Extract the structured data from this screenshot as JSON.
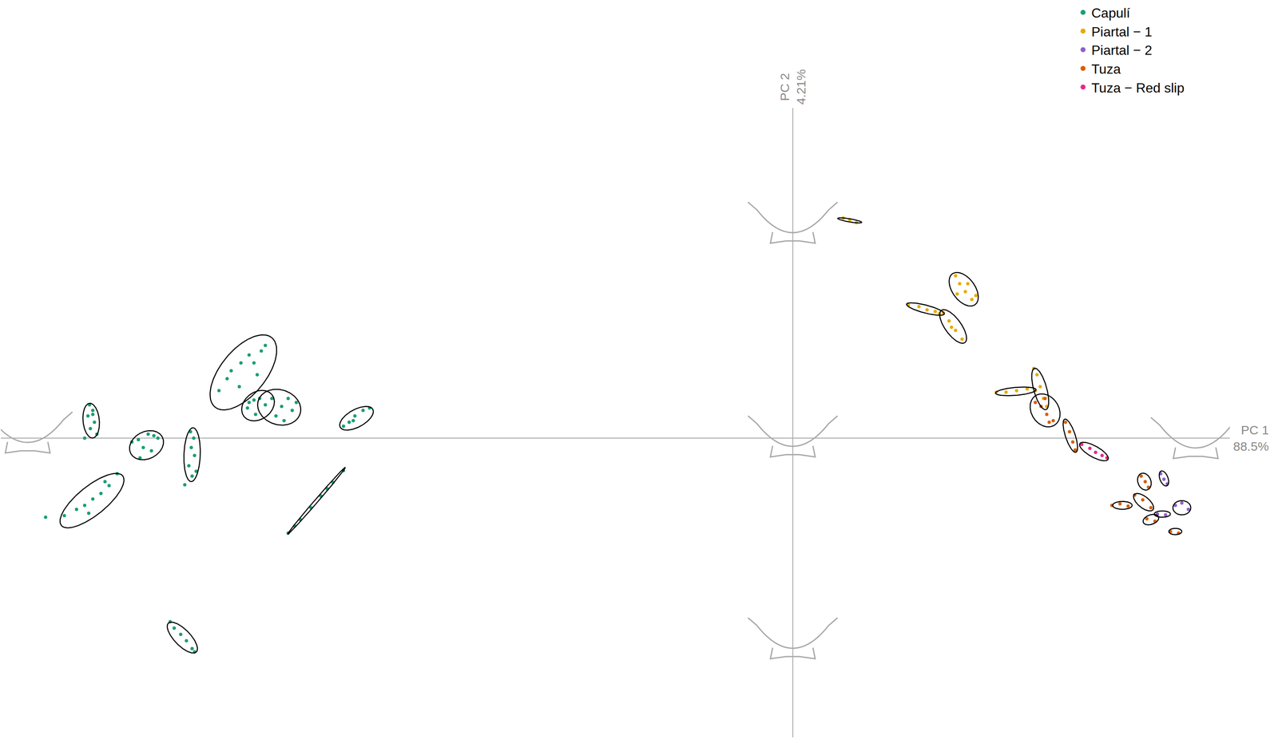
{
  "chart_data": {
    "type": "scatter",
    "x_axis_label": [
      "PC 1",
      "88.5%"
    ],
    "y_axis_label": [
      "PC 2",
      "4.21%"
    ],
    "xlim": [
      -9.73,
      5.37
    ],
    "ylim": [
      -3.78,
      4.17
    ],
    "xticks": [],
    "yticks": [],
    "tick_labels": false,
    "grid": false,
    "legend": "top right",
    "marker": "circle",
    "series": [
      {
        "name": "Capulí",
        "color": "#1b9e77",
        "x": [
          -8.64,
          -8.6,
          -8.66,
          -8.58,
          -8.63,
          -8.55,
          -8.7,
          -8.6,
          -8.12,
          -8.04,
          -7.92,
          -7.85,
          -7.98,
          -8.02,
          -7.88,
          -7.8,
          -7.4,
          -7.36,
          -7.39,
          -7.35,
          -7.42,
          -7.38,
          -7.47,
          -7.33,
          -9.18,
          -8.95,
          -8.8,
          -8.7,
          -8.6,
          -8.5,
          -8.4,
          -8.3,
          -8.65,
          -8.45,
          -6.48,
          -6.53,
          -6.68,
          -6.78,
          -6.9,
          -6.95,
          -7.05,
          -6.8,
          -6.62,
          -6.58,
          -6.7,
          -6.62,
          -6.55,
          -6.48,
          -6.6,
          -6.68,
          -6.2,
          -6.1,
          -6.28,
          -6.35,
          -6.15,
          -6.4,
          -6.25,
          -5.52,
          -5.45,
          -5.38,
          -5.28,
          -5.2,
          -5.4,
          -6.2,
          -6.05,
          -5.92,
          -5.8,
          -5.65,
          -5.52,
          -6.12,
          -5.72,
          -7.65,
          -7.6,
          -7.52,
          -7.45,
          -7.38,
          -7.35
        ],
        "y": [
          0.42,
          0.35,
          0.28,
          0.2,
          0.12,
          0.05,
          0.0,
          0.3,
          -0.05,
          -0.02,
          0.05,
          0.03,
          -0.12,
          -0.25,
          -0.16,
          0.0,
          0.08,
          0.0,
          -0.12,
          -0.22,
          -0.35,
          -0.48,
          -0.59,
          -0.42,
          -1.0,
          -0.98,
          -0.9,
          -0.85,
          -0.77,
          -0.7,
          -0.6,
          -0.45,
          -0.95,
          -0.55,
          1.17,
          1.1,
          1.05,
          0.95,
          0.85,
          0.75,
          0.6,
          0.65,
          0.95,
          0.8,
          0.38,
          0.48,
          0.5,
          0.42,
          0.3,
          0.45,
          0.5,
          0.45,
          0.4,
          0.28,
          0.35,
          0.5,
          0.22,
          0.15,
          0.2,
          0.28,
          0.35,
          0.38,
          0.22,
          -1.2,
          -1.03,
          -0.88,
          -0.73,
          -0.56,
          -0.41,
          -1.11,
          -0.64,
          -2.32,
          -2.4,
          -2.48,
          -2.56,
          -2.66,
          -2.7
        ]
      },
      {
        "name": "Piartal − 1",
        "color": "#e6ab02",
        "x": [
          0.62,
          0.7,
          0.78,
          2.0,
          2.05,
          2.12,
          2.2,
          2.02,
          2.15,
          2.25,
          1.42,
          1.55,
          1.65,
          1.75,
          1.8,
          1.85,
          1.92,
          2.0,
          2.08,
          1.95,
          2.5,
          2.62,
          2.75,
          2.88,
          2.98,
          2.96,
          3.0,
          3.04,
          3.08,
          3.12
        ],
        "y": [
          2.78,
          2.76,
          2.72,
          2.05,
          1.95,
          1.85,
          1.75,
          1.82,
          1.95,
          1.8,
          1.68,
          1.66,
          1.62,
          1.6,
          1.57,
          1.58,
          1.48,
          1.36,
          1.25,
          1.4,
          0.58,
          0.58,
          0.6,
          0.62,
          0.6,
          0.88,
          0.8,
          0.65,
          0.5,
          0.4
        ]
      },
      {
        "name": "Piartal − 2",
        "color": "#8f5fc9",
        "x": [
          4.52,
          4.56,
          4.6,
          4.7,
          4.78,
          4.86,
          4.48,
          4.58
        ],
        "y": [
          -0.45,
          -0.52,
          -0.58,
          -0.85,
          -0.82,
          -0.9,
          -0.96,
          -0.97
        ]
      },
      {
        "name": "Tuza",
        "color": "#d95f02",
        "x": [
          2.98,
          3.05,
          3.12,
          3.2,
          3.1,
          3.15,
          3.35,
          3.4,
          3.44,
          3.47,
          4.28,
          4.33,
          4.37,
          3.92,
          4.02,
          4.12,
          4.2,
          4.3,
          4.4,
          4.35,
          4.45,
          4.64,
          4.74
        ],
        "y": [
          0.45,
          0.4,
          0.3,
          0.22,
          0.5,
          0.2,
          0.2,
          0.08,
          -0.05,
          -0.15,
          -0.48,
          -0.55,
          -0.62,
          -0.85,
          -0.83,
          -0.86,
          -0.72,
          -0.78,
          -0.88,
          -1.02,
          -1.05,
          -1.18,
          -1.2
        ]
      },
      {
        "name": "Tuza − Red slip",
        "color": "#e7298a",
        "x": [
          3.55,
          3.65,
          3.72,
          3.8,
          3.86
        ],
        "y": [
          -0.08,
          -0.13,
          -0.18,
          -0.22,
          -0.25
        ]
      }
    ],
    "ellipses": [
      {
        "series": "Capulí",
        "cx": -8.62,
        "cy": 0.22,
        "a": 0.22,
        "b": 0.1,
        "angle": 95
      },
      {
        "series": "Capulí",
        "cx": -7.94,
        "cy": -0.09,
        "a": 0.22,
        "b": 0.17,
        "angle": 30
      },
      {
        "series": "Capulí",
        "cx": -7.38,
        "cy": -0.21,
        "a": 0.34,
        "b": 0.1,
        "angle": 88
      },
      {
        "series": "Capulí",
        "cx": -8.61,
        "cy": -0.79,
        "a": 0.49,
        "b": 0.18,
        "angle": 40
      },
      {
        "series": "Capulí",
        "cx": -6.75,
        "cy": 0.83,
        "a": 0.56,
        "b": 0.28,
        "angle": 52
      },
      {
        "series": "Capulí",
        "cx": -6.57,
        "cy": 0.41,
        "a": 0.22,
        "b": 0.17,
        "angle": 40
      },
      {
        "series": "Capulí",
        "cx": -6.31,
        "cy": 0.39,
        "a": 0.27,
        "b": 0.22,
        "angle": -20
      },
      {
        "series": "Capulí",
        "cx": -5.36,
        "cy": 0.25,
        "a": 0.23,
        "b": 0.11,
        "angle": 30
      },
      {
        "series": "Capulí",
        "cx": -5.85,
        "cy": -0.79,
        "a": 0.55,
        "b": 0.02,
        "angle": 50
      },
      {
        "series": "Capulí",
        "cx": -7.5,
        "cy": -2.52,
        "a": 0.25,
        "b": 0.1,
        "angle": -47
      },
      {
        "series": "Piartal − 1",
        "cx": 0.7,
        "cy": 2.75,
        "a": 0.15,
        "b": 0.02,
        "angle": -10
      },
      {
        "series": "Piartal − 1",
        "cx": 2.1,
        "cy": 1.88,
        "a": 0.24,
        "b": 0.14,
        "angle": -55
      },
      {
        "series": "Piartal − 1",
        "cx": 1.63,
        "cy": 1.63,
        "a": 0.24,
        "b": 0.05,
        "angle": -15
      },
      {
        "series": "Piartal − 1",
        "cx": 1.97,
        "cy": 1.41,
        "a": 0.25,
        "b": 0.1,
        "angle": -55
      },
      {
        "series": "Piartal − 1",
        "cx": 2.74,
        "cy": 0.59,
        "a": 0.25,
        "b": 0.05,
        "angle": 5
      },
      {
        "series": "Piartal − 1",
        "cx": 3.04,
        "cy": 0.62,
        "a": 0.27,
        "b": 0.08,
        "angle": -75
      },
      {
        "series": "Tuza",
        "cx": 3.1,
        "cy": 0.35,
        "a": 0.22,
        "b": 0.17,
        "angle": -60
      },
      {
        "series": "Tuza",
        "cx": 3.41,
        "cy": 0.03,
        "a": 0.22,
        "b": 0.06,
        "angle": -72
      },
      {
        "series": "Tuza",
        "cx": 4.32,
        "cy": -0.55,
        "a": 0.11,
        "b": 0.08,
        "angle": -70
      },
      {
        "series": "Tuza",
        "cx": 4.05,
        "cy": -0.85,
        "a": 0.12,
        "b": 0.05,
        "angle": 0
      },
      {
        "series": "Tuza",
        "cx": 4.31,
        "cy": -0.81,
        "a": 0.15,
        "b": 0.07,
        "angle": -40
      },
      {
        "series": "Tuza",
        "cx": 4.4,
        "cy": -1.03,
        "a": 0.1,
        "b": 0.06,
        "angle": 20
      },
      {
        "series": "Tuza",
        "cx": 4.7,
        "cy": -1.18,
        "a": 0.08,
        "b": 0.04,
        "angle": 0
      },
      {
        "series": "Piartal − 2",
        "cx": 4.56,
        "cy": -0.51,
        "a": 0.1,
        "b": 0.05,
        "angle": -70
      },
      {
        "series": "Piartal − 2",
        "cx": 4.78,
        "cy": -0.88,
        "a": 0.11,
        "b": 0.09,
        "angle": 0
      },
      {
        "series": "Piartal − 2",
        "cx": 4.54,
        "cy": -0.96,
        "a": 0.1,
        "b": 0.04,
        "angle": 0
      },
      {
        "series": "Tuza − Red slip",
        "cx": 3.7,
        "cy": -0.17,
        "a": 0.2,
        "b": 0.07,
        "angle": -30
      }
    ]
  }
}
